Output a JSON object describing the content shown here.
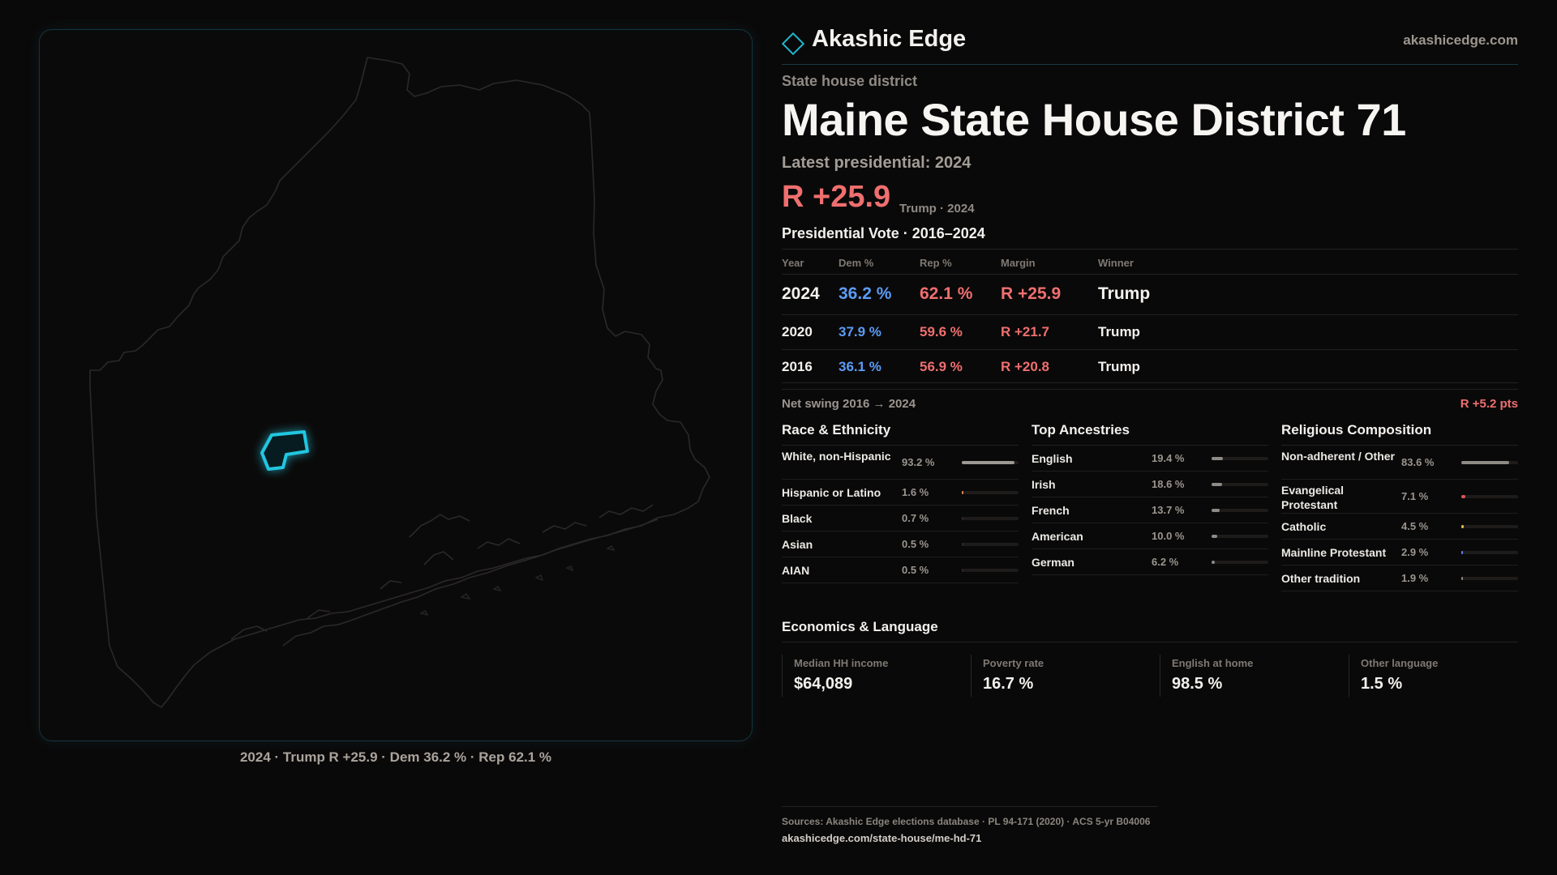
{
  "map": {
    "caption": "2024 · Trump R +25.9 · Dem 36.2 % · Rep 62.1 %"
  },
  "header": {
    "brand": "Akashic Edge",
    "url": "akashicedge.com"
  },
  "district": {
    "kicker": "State house district",
    "title": "Maine State House District 71",
    "latest": "Latest presidential: 2024",
    "margin": "R +25.9",
    "margin_note": "Trump · 2024"
  },
  "presidential": {
    "title": "Presidential Vote · 2016–2024",
    "headers": {
      "year": "Year",
      "dem": "Dem %",
      "rep": "Rep %",
      "margin": "Margin",
      "winner": "Winner"
    },
    "rows": [
      {
        "year": "2024",
        "dem": "36.2 %",
        "rep": "62.1 %",
        "margin": "R +25.9",
        "winner": "Trump"
      },
      {
        "year": "2020",
        "dem": "37.9 %",
        "rep": "59.6 %",
        "margin": "R +21.7",
        "winner": "Trump"
      },
      {
        "year": "2016",
        "dem": "36.1 %",
        "rep": "56.9 %",
        "margin": "R +20.8",
        "winner": "Trump"
      }
    ],
    "swing_label": "Net swing 2016 → 2024",
    "swing_value": "R +5.2 pts"
  },
  "race": {
    "title": "Race & Ethnicity",
    "items": [
      {
        "label": "White, non-Hispanic",
        "value": "93.2 %",
        "fraction": 0.932,
        "color": "#9d9994"
      },
      {
        "label": "Hispanic or Latino",
        "value": "1.6 %",
        "fraction": 0.016,
        "color": "#e0894a"
      },
      {
        "label": "Black",
        "value": "0.7 %",
        "fraction": 0.007,
        "color": "#2a2827"
      },
      {
        "label": "Asian",
        "value": "0.5 %",
        "fraction": 0.005,
        "color": "#2a2827"
      },
      {
        "label": "AIAN",
        "value": "0.5 %",
        "fraction": 0.005,
        "color": "#2a2827"
      }
    ]
  },
  "ancestry": {
    "title": "Top Ancestries",
    "items": [
      {
        "label": "English",
        "value": "19.4 %",
        "fraction": 0.194,
        "color": "#8e8a85"
      },
      {
        "label": "Irish",
        "value": "18.6 %",
        "fraction": 0.186,
        "color": "#8e8a85"
      },
      {
        "label": "French",
        "value": "13.7 %",
        "fraction": 0.137,
        "color": "#8e8a85"
      },
      {
        "label": "American",
        "value": "10.0 %",
        "fraction": 0.1,
        "color": "#8e8a85"
      },
      {
        "label": "German",
        "value": "6.2 %",
        "fraction": 0.062,
        "color": "#8e8a85"
      }
    ]
  },
  "religion": {
    "title": "Religious Composition",
    "items": [
      {
        "label": "Non-adherent / Other",
        "value": "83.6 %",
        "fraction": 0.836,
        "color": "#8e8a85"
      },
      {
        "label": "Evangelical Protestant",
        "value": "7.1 %",
        "fraction": 0.071,
        "color": "#e0535a"
      },
      {
        "label": "Catholic",
        "value": "4.5 %",
        "fraction": 0.045,
        "color": "#e6b84a"
      },
      {
        "label": "Mainline Protestant",
        "value": "2.9 %",
        "fraction": 0.029,
        "color": "#5b8cf0"
      },
      {
        "label": "Other tradition",
        "value": "1.9 %",
        "fraction": 0.019,
        "color": "#8e8a85"
      }
    ]
  },
  "economics": {
    "title": "Economics & Language",
    "items": [
      {
        "label": "Median HH income",
        "value": "$64,089"
      },
      {
        "label": "Poverty rate",
        "value": "16.7 %"
      },
      {
        "label": "English at home",
        "value": "98.5 %"
      },
      {
        "label": "Other language",
        "value": "1.5 %"
      }
    ]
  },
  "sources": {
    "line": "Sources: Akashic Edge elections database · PL 94-171 (2020) · ACS 5-yr B04006",
    "url": "akashicedge.com/state-house/me-hd-71"
  },
  "colors": {
    "dem": "#5b9cf6",
    "rep": "#ef6f6f",
    "highlight": "#22c6e0"
  }
}
